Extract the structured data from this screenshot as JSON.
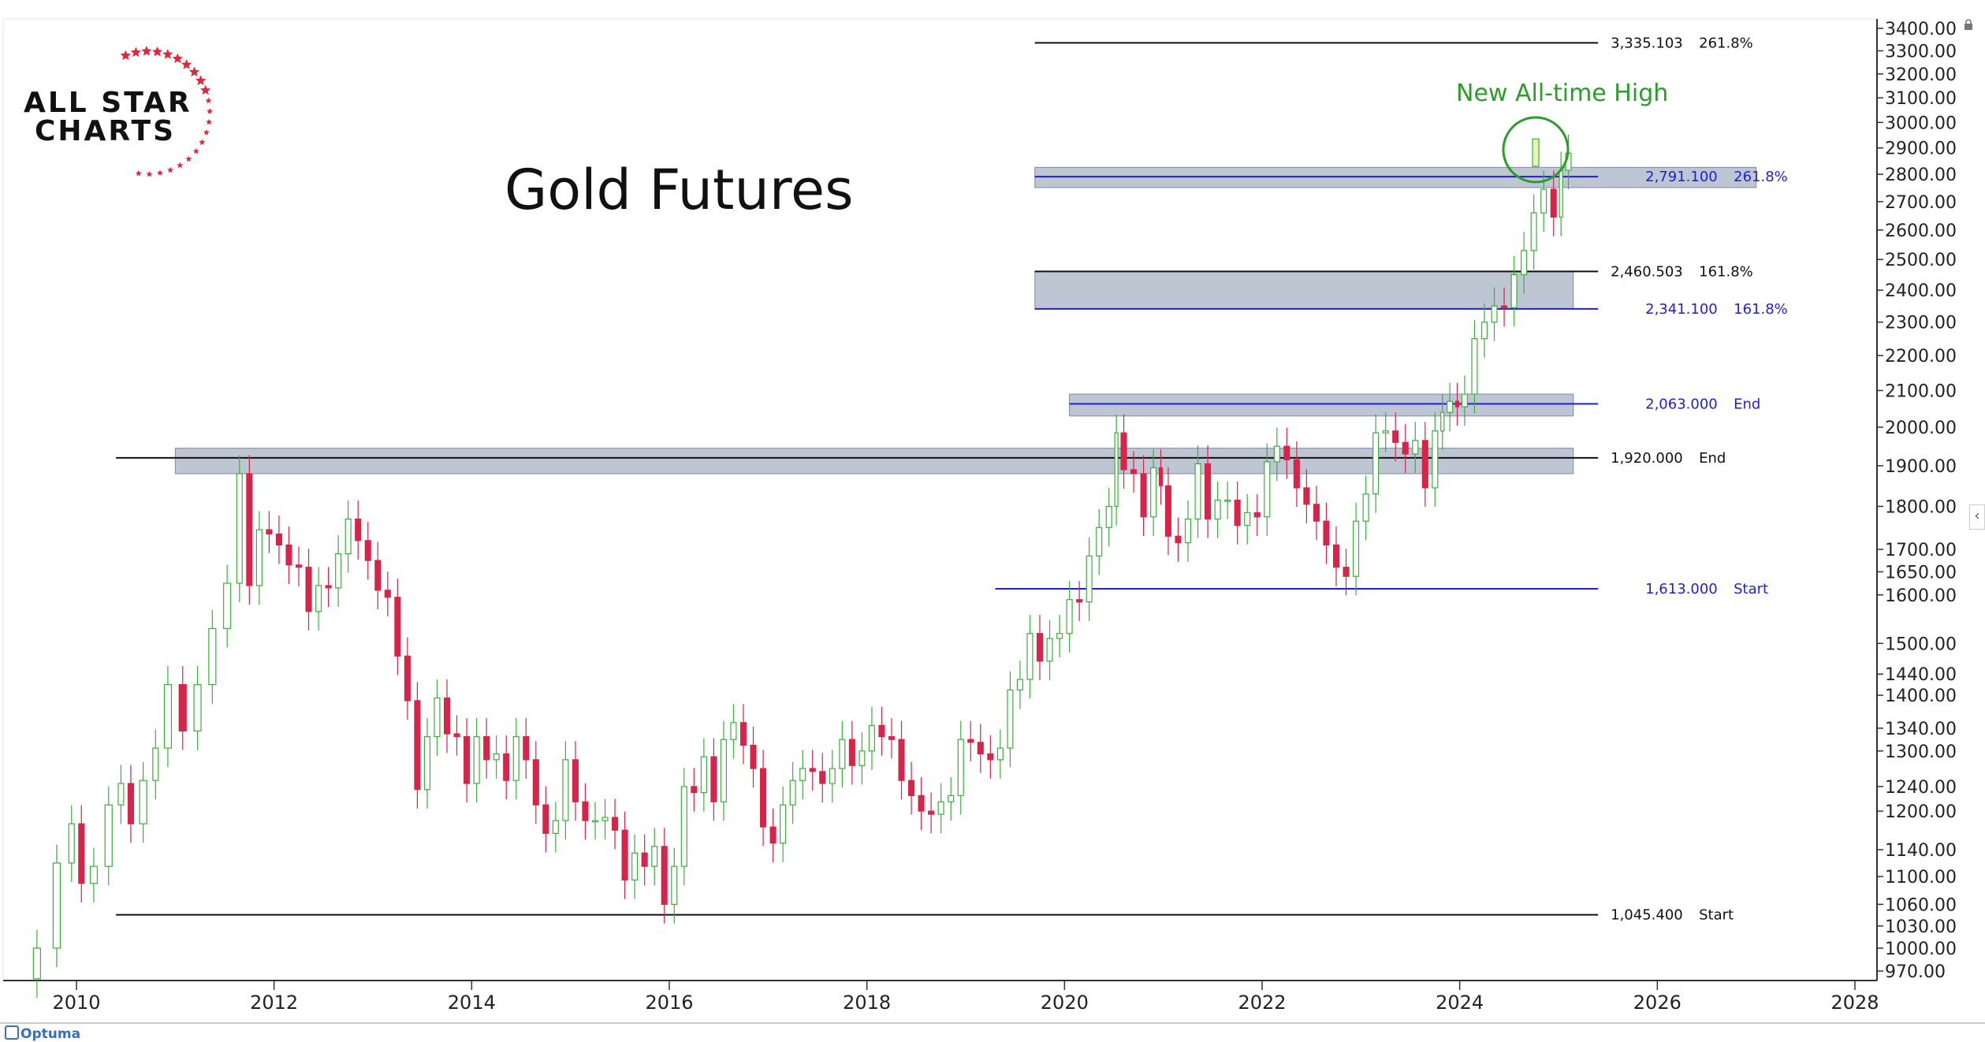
{
  "logo": {
    "line1": "ALL STAR",
    "line2": "CHARTS"
  },
  "title": "Gold Futures",
  "annotation": "New All-time High",
  "footer_brand": "Optuma",
  "colors": {
    "up": "#3cae3c",
    "down": "#d6244a",
    "zone": "#9aa8ba",
    "blue": "#1f1fd6",
    "black": "#111111",
    "annotation": "#2a9d2a"
  },
  "chart_data": {
    "type": "candlestick",
    "y_scale": "log",
    "ylim": [
      970,
      3400
    ],
    "xlim": [
      2009.5,
      2029
    ],
    "y_ticks": [
      "3400.00",
      "3300.00",
      "3200.00",
      "3100.00",
      "3000.00",
      "2900.00",
      "2800.00",
      "2700.00",
      "2600.00",
      "2500.00",
      "2400.00",
      "2300.00",
      "2200.00",
      "2100.00",
      "2000.00",
      "1900.00",
      "1800.00",
      "1700.00",
      "1650.00",
      "1600.00",
      "1500.00",
      "1440.00",
      "1400.00",
      "1340.00",
      "1300.00",
      "1240.00",
      "1200.00",
      "1140.00",
      "1100.00",
      "1060.00",
      "1030.00",
      "1000.00",
      "970.00"
    ],
    "x_ticks": [
      "2010",
      "2012",
      "2014",
      "2016",
      "2018",
      "2020",
      "2022",
      "2024",
      "2026",
      "2028"
    ],
    "series_monthly_close": [
      [
        2009.5,
        960
      ],
      [
        2009.7,
        1000
      ],
      [
        2009.9,
        1120
      ],
      [
        2010.0,
        1180
      ],
      [
        2010.1,
        1090
      ],
      [
        2010.25,
        1115
      ],
      [
        2010.4,
        1210
      ],
      [
        2010.5,
        1245
      ],
      [
        2010.6,
        1180
      ],
      [
        2010.75,
        1250
      ],
      [
        2010.85,
        1305
      ],
      [
        2011.0,
        1420
      ],
      [
        2011.15,
        1335
      ],
      [
        2011.3,
        1420
      ],
      [
        2011.45,
        1530
      ],
      [
        2011.6,
        1625
      ],
      [
        2011.7,
        1880
      ],
      [
        2011.8,
        1620
      ],
      [
        2011.9,
        1745
      ],
      [
        2012.0,
        1735
      ],
      [
        2012.1,
        1710
      ],
      [
        2012.2,
        1665
      ],
      [
        2012.3,
        1660
      ],
      [
        2012.4,
        1565
      ],
      [
        2012.5,
        1620
      ],
      [
        2012.6,
        1615
      ],
      [
        2012.7,
        1690
      ],
      [
        2012.8,
        1770
      ],
      [
        2012.9,
        1720
      ],
      [
        2013.0,
        1675
      ],
      [
        2013.1,
        1610
      ],
      [
        2013.2,
        1595
      ],
      [
        2013.3,
        1475
      ],
      [
        2013.4,
        1390
      ],
      [
        2013.5,
        1235
      ],
      [
        2013.6,
        1325
      ],
      [
        2013.7,
        1395
      ],
      [
        2013.8,
        1330
      ],
      [
        2013.9,
        1325
      ],
      [
        2014.0,
        1245
      ],
      [
        2014.1,
        1325
      ],
      [
        2014.2,
        1285
      ],
      [
        2014.3,
        1295
      ],
      [
        2014.4,
        1250
      ],
      [
        2014.5,
        1325
      ],
      [
        2014.6,
        1285
      ],
      [
        2014.7,
        1210
      ],
      [
        2014.8,
        1165
      ],
      [
        2014.9,
        1185
      ],
      [
        2015.0,
        1285
      ],
      [
        2015.1,
        1215
      ],
      [
        2015.2,
        1185
      ],
      [
        2015.3,
        1185
      ],
      [
        2015.4,
        1190
      ],
      [
        2015.5,
        1170
      ],
      [
        2015.6,
        1095
      ],
      [
        2015.7,
        1135
      ],
      [
        2015.8,
        1115
      ],
      [
        2015.9,
        1145
      ],
      [
        2016.0,
        1060
      ],
      [
        2016.1,
        1115
      ],
      [
        2016.2,
        1240
      ],
      [
        2016.3,
        1230
      ],
      [
        2016.4,
        1290
      ],
      [
        2016.5,
        1215
      ],
      [
        2016.6,
        1320
      ],
      [
        2016.7,
        1350
      ],
      [
        2016.8,
        1310
      ],
      [
        2016.9,
        1270
      ],
      [
        2017.0,
        1175
      ],
      [
        2017.1,
        1150
      ],
      [
        2017.2,
        1210
      ],
      [
        2017.3,
        1250
      ],
      [
        2017.4,
        1270
      ],
      [
        2017.5,
        1265
      ],
      [
        2017.6,
        1245
      ],
      [
        2017.7,
        1270
      ],
      [
        2017.8,
        1320
      ],
      [
        2017.9,
        1275
      ],
      [
        2018.0,
        1300
      ],
      [
        2018.1,
        1345
      ],
      [
        2018.2,
        1325
      ],
      [
        2018.3,
        1320
      ],
      [
        2018.4,
        1250
      ],
      [
        2018.5,
        1225
      ],
      [
        2018.6,
        1200
      ],
      [
        2018.7,
        1195
      ],
      [
        2018.8,
        1215
      ],
      [
        2018.9,
        1225
      ],
      [
        2019.0,
        1320
      ],
      [
        2019.1,
        1315
      ],
      [
        2019.2,
        1295
      ],
      [
        2019.3,
        1285
      ],
      [
        2019.4,
        1305
      ],
      [
        2019.5,
        1410
      ],
      [
        2019.6,
        1430
      ],
      [
        2019.7,
        1520
      ],
      [
        2019.8,
        1465
      ],
      [
        2019.9,
        1510
      ],
      [
        2020.0,
        1520
      ],
      [
        2020.1,
        1590
      ],
      [
        2020.2,
        1585
      ],
      [
        2020.3,
        1685
      ],
      [
        2020.4,
        1750
      ],
      [
        2020.5,
        1800
      ],
      [
        2020.55,
        1985
      ],
      [
        2020.65,
        1890
      ],
      [
        2020.75,
        1880
      ],
      [
        2020.85,
        1775
      ],
      [
        2020.95,
        1895
      ],
      [
        2021.0,
        1850
      ],
      [
        2021.1,
        1730
      ],
      [
        2021.2,
        1715
      ],
      [
        2021.3,
        1770
      ],
      [
        2021.4,
        1905
      ],
      [
        2021.5,
        1770
      ],
      [
        2021.6,
        1815
      ],
      [
        2021.7,
        1815
      ],
      [
        2021.8,
        1755
      ],
      [
        2021.9,
        1785
      ],
      [
        2022.0,
        1775
      ],
      [
        2022.1,
        1910
      ],
      [
        2022.2,
        1950
      ],
      [
        2022.3,
        1915
      ],
      [
        2022.4,
        1845
      ],
      [
        2022.5,
        1805
      ],
      [
        2022.6,
        1765
      ],
      [
        2022.7,
        1710
      ],
      [
        2022.8,
        1660
      ],
      [
        2022.9,
        1640
      ],
      [
        2023.0,
        1765
      ],
      [
        2023.1,
        1830
      ],
      [
        2023.2,
        1985
      ],
      [
        2023.3,
        1990
      ],
      [
        2023.4,
        1960
      ],
      [
        2023.5,
        1930
      ],
      [
        2023.6,
        1965
      ],
      [
        2023.7,
        1845
      ],
      [
        2023.8,
        1990
      ],
      [
        2023.85,
        2040
      ],
      [
        2023.95,
        2070
      ],
      [
        2024.0,
        2055
      ],
      [
        2024.1,
        2090
      ],
      [
        2024.2,
        2250
      ],
      [
        2024.3,
        2300
      ],
      [
        2024.4,
        2350
      ],
      [
        2024.5,
        2345
      ],
      [
        2024.6,
        2450
      ],
      [
        2024.7,
        2530
      ],
      [
        2024.8,
        2660
      ],
      [
        2024.9,
        2745
      ],
      [
        2025.0,
        2645
      ],
      [
        2025.05,
        2815
      ],
      [
        2025.15,
        2880
      ]
    ]
  },
  "levels": [
    {
      "label": "3,335.103",
      "tag": "261.8%",
      "color": "black"
    },
    {
      "label": "2,791.100",
      "tag": "261.8%",
      "color": "blue"
    },
    {
      "label": "2,460.503",
      "tag": "161.8%",
      "color": "black"
    },
    {
      "label": "2,341.100",
      "tag": "161.8%",
      "color": "blue"
    },
    {
      "label": "2,063.000",
      "tag": "End",
      "color": "blue"
    },
    {
      "label": "1,920.000",
      "tag": "End",
      "color": "black"
    },
    {
      "label": "1,613.000",
      "tag": "Start",
      "color": "blue"
    },
    {
      "label": "1,045.400",
      "tag": "Start",
      "color": "black"
    }
  ]
}
